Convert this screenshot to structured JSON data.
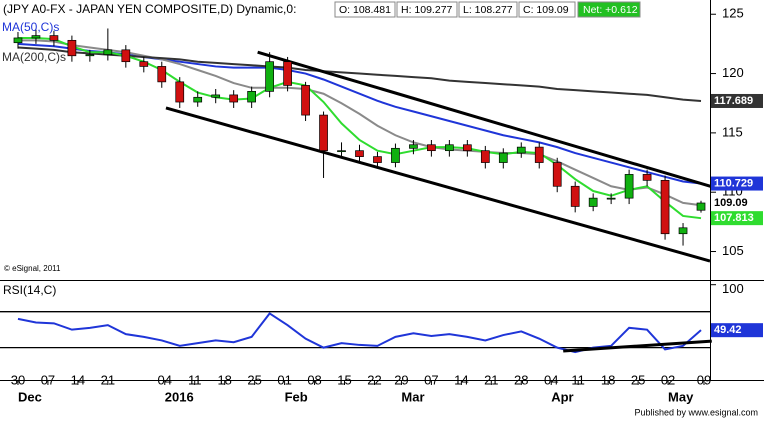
{
  "chart_data": [
    {
      "type": "candlestick",
      "header": "(JPY A0-FX - JAPAN YEN COMPOSITE,D) Dynamic,0:",
      "quote": [
        "O: 108.481",
        "H: 109.277",
        "L: 108.277",
        "C: 109.09"
      ],
      "net": "Net: +0.612",
      "credit": "© eSignal, 2011",
      "xlim": [
        -3,
        115.5
      ],
      "ylim": [
        102.6,
        126.2
      ],
      "yticks": [
        105,
        110,
        115,
        120,
        125
      ],
      "x": [
        0,
        3,
        6,
        9,
        12,
        15,
        18,
        21,
        24,
        27,
        30,
        33,
        36,
        39,
        42,
        45,
        48,
        51,
        54,
        57,
        60,
        63,
        66,
        69,
        72,
        75,
        78,
        81,
        84,
        87,
        90,
        93,
        96,
        99,
        102,
        105,
        108,
        111,
        114
      ],
      "open": [
        122.6,
        123.0,
        123.2,
        122.8,
        121.5,
        121.6,
        122.0,
        121.0,
        120.6,
        119.3,
        117.6,
        118.0,
        118.2,
        117.6,
        118.5,
        121.0,
        119.0,
        116.5,
        113.5,
        113.5,
        113.0,
        112.5,
        113.7,
        114.0,
        113.5,
        114.0,
        113.5,
        112.5,
        113.3,
        113.8,
        112.5,
        110.5,
        108.8,
        109.5,
        109.5,
        111.5,
        111.0,
        106.5,
        108.48
      ],
      "high": [
        123.5,
        123.7,
        123.6,
        123.2,
        122.0,
        123.8,
        122.4,
        121.4,
        121.0,
        119.7,
        118.5,
        118.7,
        118.6,
        118.9,
        121.8,
        121.4,
        119.3,
        116.8,
        114.2,
        114.0,
        113.4,
        114.1,
        114.4,
        114.4,
        114.4,
        114.4,
        113.9,
        113.7,
        114.2,
        114.2,
        112.9,
        110.9,
        109.9,
        109.9,
        111.9,
        111.9,
        111.4,
        107.4,
        109.28
      ],
      "low": [
        122.1,
        122.5,
        122.3,
        121.0,
        121.0,
        121.1,
        120.5,
        120.1,
        118.8,
        117.1,
        117.2,
        117.5,
        117.1,
        117.1,
        118.0,
        118.5,
        116.0,
        111.2,
        113.0,
        112.5,
        112.0,
        112.1,
        113.2,
        113.0,
        113.0,
        113.0,
        112.0,
        112.0,
        112.9,
        112.0,
        110.0,
        108.3,
        108.4,
        109.0,
        109.0,
        110.5,
        106.0,
        105.5,
        108.28
      ],
      "close": [
        123.0,
        123.2,
        122.8,
        121.5,
        121.6,
        122.0,
        121.0,
        120.6,
        119.3,
        117.6,
        118.0,
        118.2,
        117.6,
        118.5,
        121.0,
        119.0,
        116.5,
        113.5,
        113.5,
        113.0,
        112.5,
        113.7,
        114.0,
        113.5,
        114.0,
        113.5,
        112.5,
        113.3,
        113.8,
        112.5,
        110.5,
        108.8,
        109.5,
        109.5,
        111.5,
        111.0,
        106.5,
        107.0,
        109.09
      ],
      "up_color": "#10b010",
      "down_color": "#d01010",
      "last_close": 109.09,
      "series": [
        {
          "name": "MA(50,C)s",
          "color": "#1f35d8",
          "last": 110.729,
          "values": [
            122.5,
            122.4,
            122.3,
            122.1,
            121.9,
            121.8,
            121.6,
            121.4,
            121.2,
            121.0,
            120.8,
            120.6,
            120.5,
            120.5,
            120.5,
            120.3,
            120.0,
            119.5,
            118.9,
            118.3,
            117.7,
            117.2,
            116.8,
            116.4,
            116.0,
            115.6,
            115.2,
            114.8,
            114.5,
            114.2,
            113.8,
            113.3,
            112.9,
            112.5,
            112.1,
            111.7,
            111.3,
            110.9,
            110.73
          ]
        },
        {
          "color": "#8a8a8a",
          "values": [
            122.8,
            122.8,
            122.7,
            122.4,
            122.2,
            122.0,
            121.8,
            121.5,
            121.2,
            120.8,
            120.3,
            119.8,
            119.2,
            118.8,
            118.8,
            118.8,
            118.7,
            118.3,
            117.5,
            116.6,
            115.6,
            114.8,
            114.2,
            113.8,
            113.6,
            113.5,
            113.4,
            113.3,
            113.3,
            113.2,
            112.6,
            111.9,
            111.2,
            110.5,
            110.2,
            110.4,
            109.8,
            109.1,
            108.9
          ]
        },
        {
          "name": "MA(200,C)s",
          "color": "#333333",
          "last": 117.689,
          "values": [
            122.2,
            122.1,
            122.0,
            121.8,
            121.7,
            121.6,
            121.5,
            121.4,
            121.3,
            121.2,
            121.0,
            120.9,
            120.8,
            120.7,
            120.6,
            120.5,
            120.3,
            120.2,
            120.1,
            120.0,
            119.9,
            119.8,
            119.7,
            119.6,
            119.4,
            119.3,
            119.2,
            119.1,
            119.0,
            118.9,
            118.7,
            118.6,
            118.5,
            118.4,
            118.3,
            118.2,
            118.0,
            117.8,
            117.69
          ]
        },
        {
          "color": "#2fdc2f",
          "last": 107.813,
          "values": [
            123.0,
            123.0,
            122.9,
            122.3,
            121.8,
            121.8,
            121.5,
            121.0,
            120.3,
            119.3,
            118.4,
            118.0,
            117.8,
            117.9,
            118.8,
            119.3,
            119.0,
            117.6,
            115.8,
            114.4,
            113.5,
            113.2,
            113.5,
            113.8,
            113.8,
            113.7,
            113.4,
            113.2,
            113.4,
            113.3,
            112.3,
            111.1,
            110.1,
            109.7,
            110.2,
            110.5,
            109.2,
            108.0,
            107.81
          ]
        }
      ],
      "trendlines": [
        {
          "x": [
            40,
            115.8
          ],
          "y": [
            121.8,
            110.46
          ]
        },
        {
          "x": [
            24.7,
            115.5
          ],
          "y": [
            117.1,
            104.2
          ]
        }
      ]
    },
    {
      "type": "line",
      "title": "RSI(14,C)",
      "xlim": [
        -3,
        115.5
      ],
      "ylim": [
        -6,
        103
      ],
      "yticks": [
        100
      ],
      "levels": [
        70,
        30
      ],
      "x": [
        0,
        3,
        6,
        9,
        12,
        15,
        18,
        21,
        24,
        27,
        30,
        33,
        36,
        39,
        42,
        45,
        48,
        51,
        54,
        57,
        60,
        63,
        66,
        69,
        72,
        75,
        78,
        81,
        84,
        87,
        90,
        93,
        96,
        99,
        102,
        105,
        108,
        111,
        114
      ],
      "series": [
        {
          "color": "#1f35d8",
          "last": 49.42,
          "values": [
            62,
            58,
            57,
            50,
            52,
            55,
            45,
            42,
            38,
            32,
            35,
            38,
            36,
            42,
            68,
            55,
            40,
            30,
            35,
            33,
            32,
            42,
            46,
            43,
            45,
            42,
            38,
            44,
            48,
            40,
            30,
            25,
            30,
            32,
            52,
            50,
            28,
            32,
            49.42
          ]
        }
      ],
      "trendlines": [
        {
          "x": [
            91,
            115.8
          ],
          "y": [
            26.2,
            37.3
          ]
        }
      ],
      "xticks": [
        {
          "value": 0,
          "label": "30"
        },
        {
          "value": 5,
          "label": "07"
        },
        {
          "value": 10,
          "label": "14"
        },
        {
          "value": 15,
          "label": "21"
        },
        {
          "value": 24.5,
          "label": "04"
        },
        {
          "value": 29.5,
          "label": "11"
        },
        {
          "value": 34.5,
          "label": "18"
        },
        {
          "value": 39.5,
          "label": "25"
        },
        {
          "value": 44.5,
          "label": "01"
        },
        {
          "value": 49.5,
          "label": "08"
        },
        {
          "value": 54.5,
          "label": "15"
        },
        {
          "value": 59.5,
          "label": "22"
        },
        {
          "value": 64,
          "label": "29"
        },
        {
          "value": 69,
          "label": "07"
        },
        {
          "value": 74,
          "label": "14"
        },
        {
          "value": 79,
          "label": "21"
        },
        {
          "value": 84,
          "label": "28"
        },
        {
          "value": 89,
          "label": "04"
        },
        {
          "value": 93.5,
          "label": "11"
        },
        {
          "value": 98.5,
          "label": "18"
        },
        {
          "value": 103.5,
          "label": "25"
        },
        {
          "value": 108.5,
          "label": "02"
        },
        {
          "value": 114.5,
          "label": "09"
        }
      ],
      "month_labels": [
        {
          "value": 0,
          "label": "Dec"
        },
        {
          "value": 24.5,
          "label": "2016"
        },
        {
          "value": 44.5,
          "label": "Feb"
        },
        {
          "value": 64,
          "label": "Mar"
        },
        {
          "value": 89,
          "label": "Apr"
        },
        {
          "value": 108.5,
          "label": "May"
        }
      ],
      "footer": "Published by www.esignal.com"
    }
  ]
}
